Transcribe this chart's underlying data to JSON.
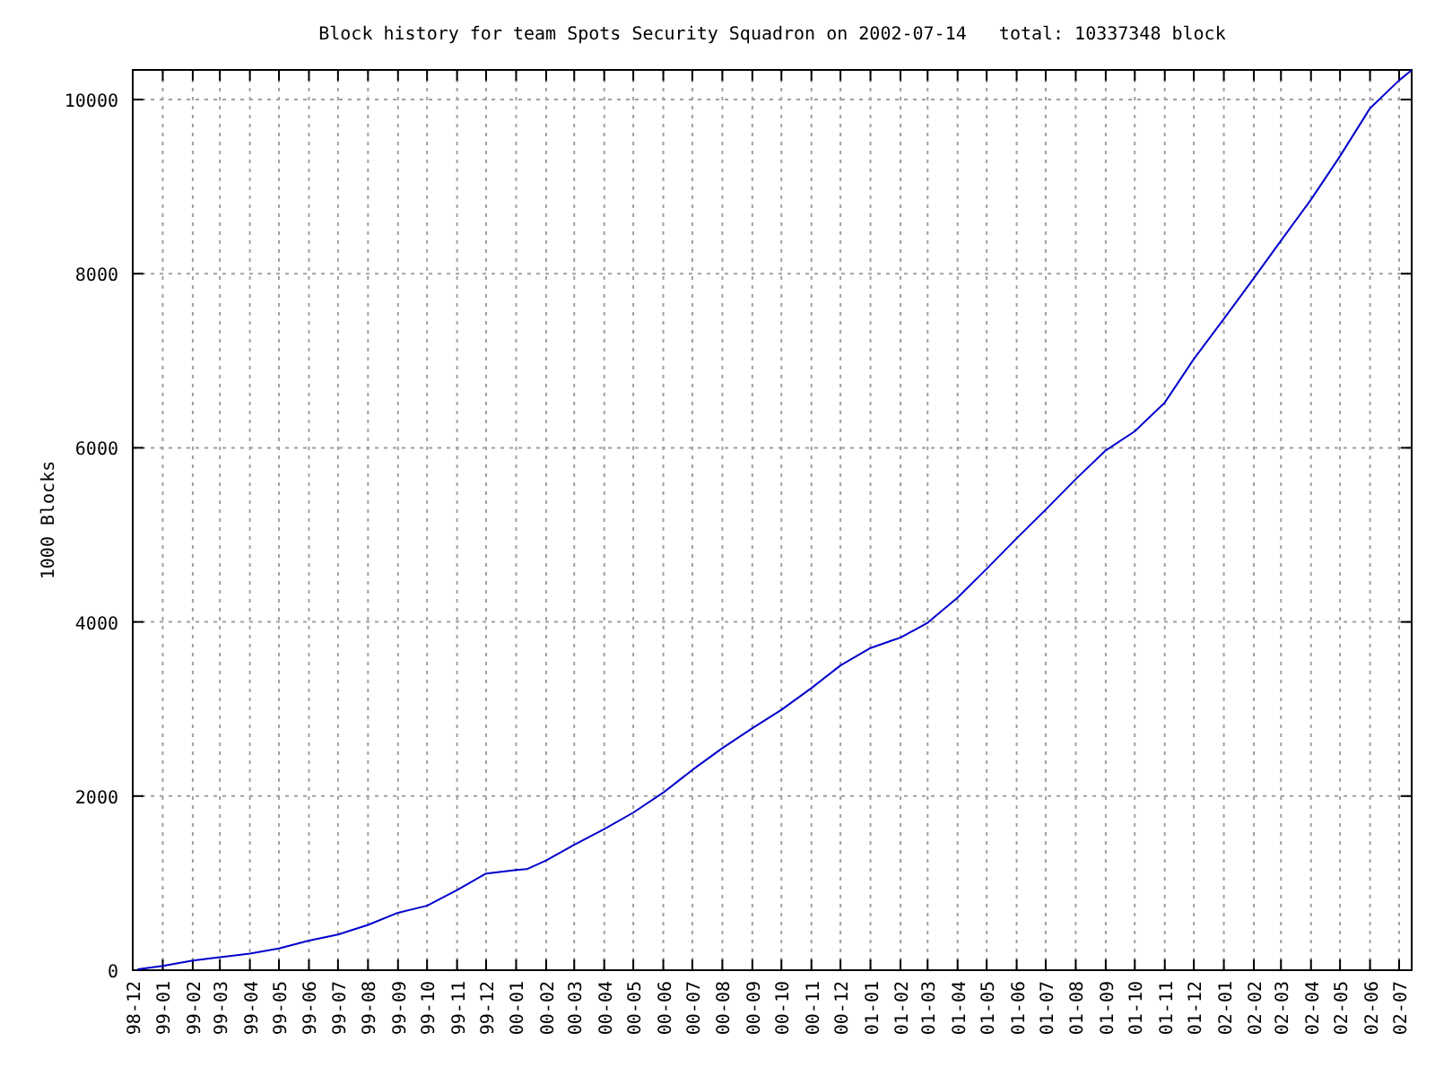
{
  "chart_data": {
    "type": "line",
    "title": "Block history for team Spots Security Squadron on 2002-07-14   total: 10337348 block",
    "ylabel": "1000 Blocks",
    "xlim": [
      "1998-12-01",
      "2002-07-14"
    ],
    "ylim": [
      0,
      10340
    ],
    "yticks": [
      0,
      2000,
      4000,
      6000,
      8000,
      10000
    ],
    "xticks": [
      {
        "value": "1998-12",
        "label": "98-12"
      },
      {
        "value": "1999-01",
        "label": "99-01"
      },
      {
        "value": "1999-02",
        "label": "99-02"
      },
      {
        "value": "1999-03",
        "label": "99-03"
      },
      {
        "value": "1999-04",
        "label": "99-04"
      },
      {
        "value": "1999-05",
        "label": "99-05"
      },
      {
        "value": "1999-06",
        "label": "99-06"
      },
      {
        "value": "1999-07",
        "label": "99-07"
      },
      {
        "value": "1999-08",
        "label": "99-08"
      },
      {
        "value": "1999-09",
        "label": "99-09"
      },
      {
        "value": "1999-10",
        "label": "99-10"
      },
      {
        "value": "1999-11",
        "label": "99-11"
      },
      {
        "value": "1999-12",
        "label": "99-12"
      },
      {
        "value": "2000-01",
        "label": "00-01"
      },
      {
        "value": "2000-02",
        "label": "00-02"
      },
      {
        "value": "2000-03",
        "label": "00-03"
      },
      {
        "value": "2000-04",
        "label": "00-04"
      },
      {
        "value": "2000-05",
        "label": "00-05"
      },
      {
        "value": "2000-06",
        "label": "00-06"
      },
      {
        "value": "2000-07",
        "label": "00-07"
      },
      {
        "value": "2000-08",
        "label": "00-08"
      },
      {
        "value": "2000-09",
        "label": "00-09"
      },
      {
        "value": "2000-10",
        "label": "00-10"
      },
      {
        "value": "2000-11",
        "label": "00-11"
      },
      {
        "value": "2000-12",
        "label": "00-12"
      },
      {
        "value": "2001-01",
        "label": "01-01"
      },
      {
        "value": "2001-02",
        "label": "01-02"
      },
      {
        "value": "2001-03",
        "label": "01-03"
      },
      {
        "value": "2001-04",
        "label": "01-04"
      },
      {
        "value": "2001-05",
        "label": "01-05"
      },
      {
        "value": "2001-06",
        "label": "01-06"
      },
      {
        "value": "2001-07",
        "label": "01-07"
      },
      {
        "value": "2001-08",
        "label": "01-08"
      },
      {
        "value": "2001-09",
        "label": "01-09"
      },
      {
        "value": "2001-10",
        "label": "01-10"
      },
      {
        "value": "2001-11",
        "label": "01-11"
      },
      {
        "value": "2001-12",
        "label": "01-12"
      },
      {
        "value": "2002-01",
        "label": "02-01"
      },
      {
        "value": "2002-02",
        "label": "02-02"
      },
      {
        "value": "2002-03",
        "label": "02-03"
      },
      {
        "value": "2002-04",
        "label": "02-04"
      },
      {
        "value": "2002-05",
        "label": "02-05"
      },
      {
        "value": "2002-06",
        "label": "02-06"
      },
      {
        "value": "2002-07",
        "label": "02-07"
      }
    ],
    "grid": true,
    "x": [
      "1998-12-06",
      "1999-01-01",
      "1999-02-01",
      "1999-03-01",
      "1999-04-01",
      "1999-05-01",
      "1999-06-01",
      "1999-07-01",
      "1999-08-01",
      "1999-09-01",
      "1999-10-01",
      "1999-11-01",
      "1999-12-01",
      "2000-01-01",
      "2000-01-12",
      "2000-02-01",
      "2000-03-01",
      "2000-04-01",
      "2000-05-01",
      "2000-06-01",
      "2000-07-01",
      "2000-08-01",
      "2000-09-01",
      "2000-10-01",
      "2000-11-01",
      "2000-12-01",
      "2001-01-01",
      "2001-01-24",
      "2001-02-01",
      "2001-03-01",
      "2001-04-01",
      "2001-05-01",
      "2001-06-01",
      "2001-07-01",
      "2001-08-01",
      "2001-09-01",
      "2001-10-01",
      "2001-11-01",
      "2001-12-01",
      "2002-01-01",
      "2002-02-01",
      "2002-03-01",
      "2002-04-01",
      "2002-05-01",
      "2002-06-01",
      "2002-07-01",
      "2002-07-14"
    ],
    "series": [
      {
        "color": "#0000cc",
        "values": [
          10,
          50,
          110,
          150,
          190,
          250,
          340,
          410,
          520,
          660,
          740,
          920,
          1110,
          1150,
          1160,
          1260,
          1440,
          1620,
          1810,
          2040,
          2300,
          2550,
          2780,
          2990,
          3240,
          3500,
          3700,
          3790,
          3820,
          3990,
          4280,
          4610,
          4960,
          5290,
          5640,
          5970,
          6190,
          6520,
          7020,
          7480,
          7950,
          8380,
          8850,
          9350,
          9900,
          10220,
          10337
        ]
      }
    ]
  }
}
